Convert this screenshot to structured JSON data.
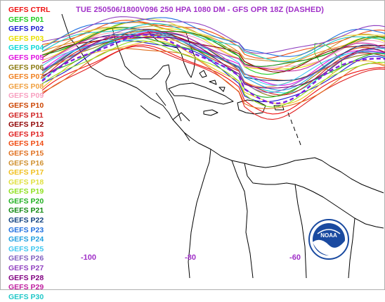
{
  "title": "TUE 250506/1800V096  250 HPA 1080 DM - GFS OPR 18Z (DASHED)",
  "legend": [
    {
      "label": "GEFS CTRL",
      "color": "#ee1111"
    },
    {
      "label": "GEFS P01",
      "color": "#22cc22"
    },
    {
      "label": "GEFS P02",
      "color": "#1a1ad0"
    },
    {
      "label": "GEFS P03",
      "color": "#e8e000"
    },
    {
      "label": "GEFS P04",
      "color": "#10d8d8"
    },
    {
      "label": "GEFS P05",
      "color": "#e010e0"
    },
    {
      "label": "GEFS P06",
      "color": "#8a7a10"
    },
    {
      "label": "GEFS P07",
      "color": "#f08020"
    },
    {
      "label": "GEFS P08",
      "color": "#f0a040"
    },
    {
      "label": "GEFS P09",
      "color": "#f8a0c0"
    },
    {
      "label": "GEFS P10",
      "color": "#cc4400"
    },
    {
      "label": "GEFS P11",
      "color": "#d02020"
    },
    {
      "label": "GEFS P12",
      "color": "#900000"
    },
    {
      "label": "GEFS P13",
      "color": "#e02020"
    },
    {
      "label": "GEFS P14",
      "color": "#f04a10"
    },
    {
      "label": "GEFS P15",
      "color": "#e07020"
    },
    {
      "label": "GEFS P16",
      "color": "#d09030"
    },
    {
      "label": "GEFS P17",
      "color": "#f0c020"
    },
    {
      "label": "GEFS P18",
      "color": "#e0e040"
    },
    {
      "label": "GEFS P19",
      "color": "#90e020"
    },
    {
      "label": "GEFS P20",
      "color": "#20b020"
    },
    {
      "label": "GEFS P21",
      "color": "#108810"
    },
    {
      "label": "GEFS P22",
      "color": "#104080"
    },
    {
      "label": "GEFS P23",
      "color": "#2070e0"
    },
    {
      "label": "GEFS P24",
      "color": "#20a0e0"
    },
    {
      "label": "GEFS P25",
      "color": "#40c8f0"
    },
    {
      "label": "GEFS P26",
      "color": "#8060c0"
    },
    {
      "label": "GEFS P27",
      "color": "#9040c0"
    },
    {
      "label": "GEFS P28",
      "color": "#800080"
    },
    {
      "label": "GEFS P29",
      "color": "#c020a0"
    },
    {
      "label": "GEFS P30",
      "color": "#20c8c8"
    }
  ],
  "lon_ticks": [
    "-100",
    "-80",
    "-60"
  ],
  "gfs_opr_color": "#8020e0",
  "logo_text": "NOAA"
}
